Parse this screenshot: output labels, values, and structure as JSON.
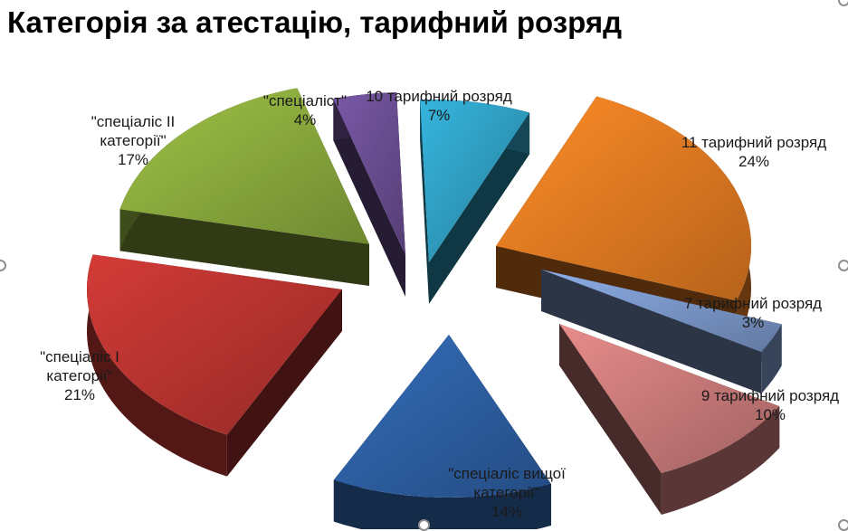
{
  "chart_data": {
    "type": "pie",
    "title": "Категорія за атестацію, тарифний розряд",
    "slices": [
      {
        "label_lines": [
          "10 тарифний розряд"
        ],
        "percent_label": "7%",
        "value": 7,
        "color": "#2f9dc1"
      },
      {
        "label_lines": [
          "11 тарифний розряд"
        ],
        "percent_label": "24%",
        "value": 24,
        "color": "#e37b22"
      },
      {
        "label_lines": [
          "7 тарифний розряд"
        ],
        "percent_label": "3%",
        "value": 3,
        "color": "#7b97c9"
      },
      {
        "label_lines": [
          "9 тарифний розряд"
        ],
        "percent_label": "10%",
        "value": 10,
        "color": "#c97a79"
      },
      {
        "label_lines": [
          "\"спеціаліс вищої",
          "категорії\""
        ],
        "percent_label": "14%",
        "value": 14,
        "color": "#2d5fa3"
      },
      {
        "label_lines": [
          "\"спеціаліс І",
          "категорії\""
        ],
        "percent_label": "21%",
        "value": 21,
        "color": "#b83330"
      },
      {
        "label_lines": [
          "\"спеціаліс ІІ",
          "категорії\""
        ],
        "percent_label": "17%",
        "value": 17,
        "color": "#8aaa3d"
      },
      {
        "label_lines": [
          "\"спеціаліст\""
        ],
        "percent_label": "4%",
        "value": 4,
        "color": "#6a4d92"
      }
    ],
    "legend": "none",
    "style": "3d exploded pie"
  }
}
